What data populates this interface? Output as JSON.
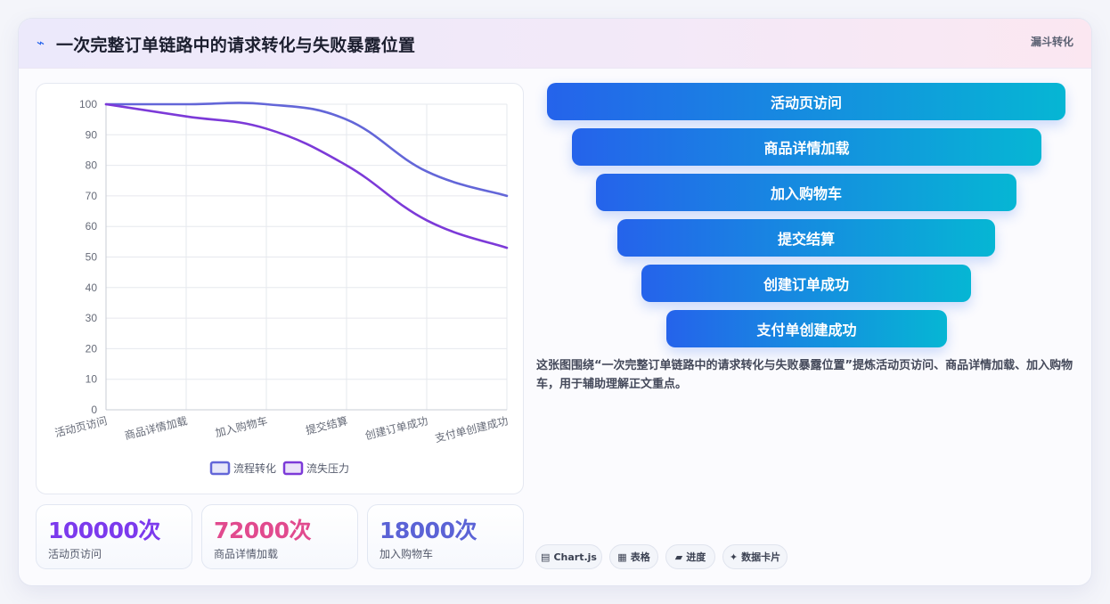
{
  "header": {
    "icon": "lightning-icon",
    "title": "一次完整订单链路中的请求转化与失败暴露位置",
    "tag": "漏斗转化"
  },
  "chart_data": {
    "type": "line",
    "categories": [
      "活动页访问",
      "商品详情加载",
      "加入购物车",
      "提交结算",
      "创建订单成功",
      "支付单创建成功"
    ],
    "ylim": [
      0,
      100
    ],
    "yticks": [
      0,
      10,
      20,
      30,
      40,
      50,
      60,
      70,
      80,
      90,
      100
    ],
    "grid": true,
    "legend": "bottom",
    "series": [
      {
        "name": "流程转化",
        "values": [
          100,
          100,
          100,
          95,
          78,
          70
        ],
        "color": "#6366d8"
      },
      {
        "name": "流失压力",
        "values": [
          100,
          96,
          92,
          80,
          62,
          53
        ],
        "color": "#7c3ad8"
      }
    ]
  },
  "stats": [
    {
      "value": "100000次",
      "label": "活动页访问",
      "color": "#7c3aed"
    },
    {
      "value": "72000次",
      "label": "商品详情加载",
      "color": "#e14a8e"
    },
    {
      "value": "18000次",
      "label": "加入购物车",
      "color": "#5b63d6"
    }
  ],
  "funnel": [
    {
      "label": "活动页访问"
    },
    {
      "label": "商品详情加载"
    },
    {
      "label": "加入购物车"
    },
    {
      "label": "提交结算"
    },
    {
      "label": "创建订单成功"
    },
    {
      "label": "支付单创建成功"
    }
  ],
  "description": "这张图围绕“一次完整订单链路中的请求转化与失败暴露位置”提炼活动页访问、商品详情加载、加入购物车，用于辅助理解正文重点。",
  "chips": [
    {
      "icon": "chart-icon",
      "glyph": "▤",
      "label": "Chart.js"
    },
    {
      "icon": "table-icon",
      "glyph": "▦",
      "label": "表格"
    },
    {
      "icon": "progress-icon",
      "glyph": "▰",
      "label": "进度"
    },
    {
      "icon": "sparkle-icon",
      "glyph": "✦",
      "label": "数据卡片"
    }
  ]
}
